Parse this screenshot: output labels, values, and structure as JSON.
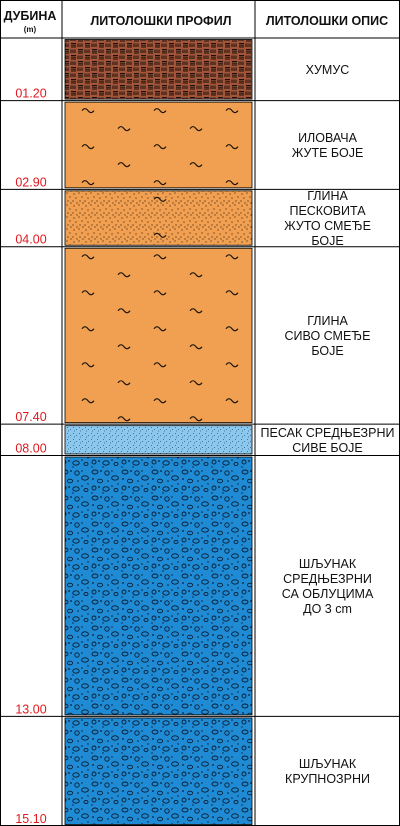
{
  "header": {
    "depth_title": "ДУБИНА",
    "depth_unit": "(m)",
    "profile_title": "ЛИТОЛОШКИ ПРОФИЛ",
    "description_title": "ЛИТОЛОШКИ ОПИС"
  },
  "scale": {
    "top_depth": 0,
    "bottom_depth": 15.1
  },
  "layers": [
    {
      "bottom_label": "01.20",
      "bottom_depth": 1.2,
      "description": [
        "ХУМУС"
      ],
      "pattern": "humus",
      "color": "#a2553a"
    },
    {
      "bottom_label": "02.90",
      "bottom_depth": 2.9,
      "description": [
        "ИЛОВАЧА",
        "ЖУТЕ БОЈЕ"
      ],
      "pattern": "clay",
      "color": "#f0a050"
    },
    {
      "bottom_label": "04.00",
      "bottom_depth": 4.0,
      "description": [
        "ГЛИНА",
        "ПЕСКОВИТА",
        "ЖУТО СМЕЂЕ",
        "БОЈЕ"
      ],
      "pattern": "sandy-clay",
      "color": "#f0a050"
    },
    {
      "bottom_label": "07.40",
      "bottom_depth": 7.4,
      "description": [
        "ГЛИНА",
        "СИВО СМЕЂЕ",
        "БОЈЕ"
      ],
      "pattern": "clay",
      "color": "#f0a050"
    },
    {
      "bottom_label": "08.00",
      "bottom_depth": 8.0,
      "description": [
        "ПЕСАК СРЕДЊЕЗРНИ",
        "СИВЕ БОЈЕ"
      ],
      "pattern": "sand",
      "color": "#8cc8ee"
    },
    {
      "bottom_label": "13.00",
      "bottom_depth": 13.0,
      "description": [
        "ШЉУНАК",
        "СРЕДЊЕЗРНИ",
        "СА ОБЛУЦИМА",
        "ДО 3 cm"
      ],
      "pattern": "gravel",
      "color": "#1f8bd4"
    },
    {
      "bottom_label": "15.10",
      "bottom_depth": 15.1,
      "description": [
        "ШЉУНАК",
        "КРУПНОЗРНИ"
      ],
      "pattern": "gravel",
      "color": "#1f8bd4"
    }
  ]
}
